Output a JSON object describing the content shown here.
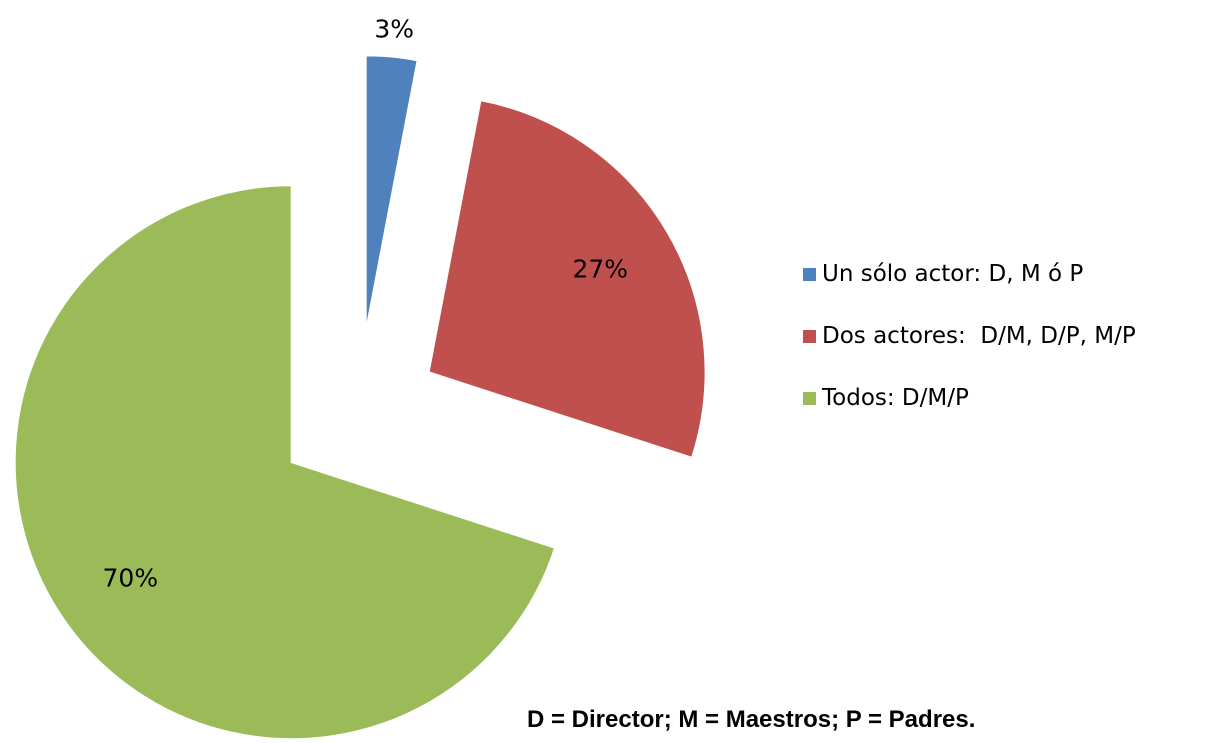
{
  "chart_data": {
    "type": "pie",
    "categories": [
      "Un sólo actor: D, M ó P",
      "Dos actores:  D/M, D/P, M/P",
      "Todos: D/M/P"
    ],
    "values": [
      3,
      27,
      70
    ],
    "value_labels": [
      "3%",
      "27%",
      "70%"
    ],
    "colors": [
      "#4f81bd",
      "#c0504d",
      "#9bbb59"
    ],
    "legend": "right",
    "annotation": "D = Director; M = Maestros; P = Padres."
  }
}
